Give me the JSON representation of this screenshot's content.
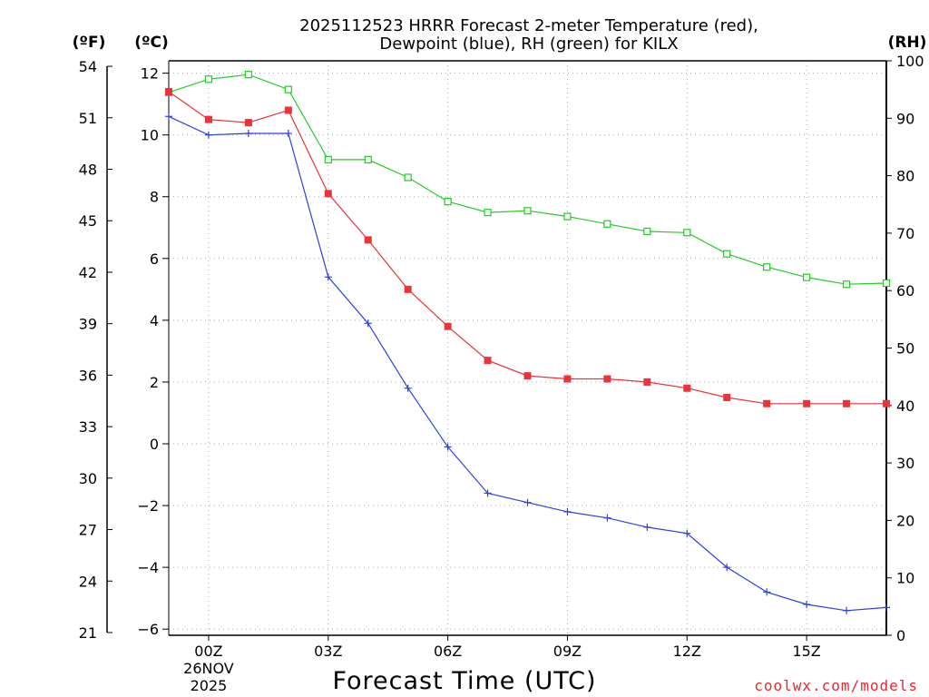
{
  "chart_data": {
    "type": "line",
    "title_line1": "2025112523 HRRR Forecast 2-meter Temperature (red),",
    "title_line2": "Dewpoint (blue), RH (green) for KILX",
    "xlabel": "Forecast Time (UTC)",
    "credit": "coolwx.com/models",
    "units": {
      "fahrenheit": "(ºF)",
      "celsius": "(ºC)",
      "rh": "(RH)"
    },
    "x_hours": [
      -1,
      0,
      1,
      2,
      3,
      4,
      5,
      6,
      7,
      8,
      9,
      10,
      11,
      12,
      13,
      14,
      15,
      16,
      17
    ],
    "xlim": [
      -1,
      17
    ],
    "x_ticks": [
      {
        "hour": 0,
        "label": "00Z",
        "label2": "26NOV",
        "label3": "2025"
      },
      {
        "hour": 3,
        "label": "03Z"
      },
      {
        "hour": 6,
        "label": "06Z"
      },
      {
        "hour": 9,
        "label": "09Z"
      },
      {
        "hour": 12,
        "label": "12Z"
      },
      {
        "hour": 15,
        "label": "15Z"
      }
    ],
    "celsius_axis": {
      "ylim": [
        -6.2,
        12.4
      ],
      "ticks": [
        "12",
        "10",
        "8",
        "6",
        "4",
        "2",
        "0",
        "−2",
        "−4",
        "−6"
      ]
    },
    "fahrenheit_axis": {
      "ticks": [
        "54",
        "51",
        "48",
        "45",
        "42",
        "39",
        "36",
        "33",
        "30",
        "27",
        "24",
        "21"
      ]
    },
    "rh_axis": {
      "ylim": [
        0,
        100
      ],
      "ticks": [
        "100",
        "90",
        "80",
        "70",
        "60",
        "50",
        "40",
        "30",
        "20",
        "10",
        "0"
      ]
    },
    "series": [
      {
        "name": "Temperature",
        "axis": "celsius",
        "color": "#e8343a",
        "marker": "filled-square",
        "values": [
          11.4,
          10.5,
          10.4,
          10.8,
          8.1,
          6.6,
          5.0,
          3.8,
          2.7,
          2.2,
          2.1,
          2.1,
          2.0,
          1.8,
          1.5,
          1.3,
          1.3,
          1.3,
          1.3
        ]
      },
      {
        "name": "Dewpoint",
        "axis": "celsius",
        "color": "#2c3fe6",
        "marker": "plus",
        "values": [
          10.6,
          10.0,
          10.05,
          10.05,
          5.4,
          3.9,
          1.8,
          -0.1,
          -1.6,
          -1.9,
          -2.2,
          -2.4,
          -2.7,
          -2.9,
          -4.0,
          -4.8,
          -5.2,
          -5.4,
          -5.3
        ]
      },
      {
        "name": "RH",
        "axis": "rh",
        "color": "#22cc22",
        "marker": "open-square",
        "values": [
          94.5,
          96.8,
          97.6,
          95.0,
          82.8,
          82.8,
          79.7,
          75.5,
          73.6,
          73.9,
          72.9,
          71.6,
          70.3,
          70.1,
          66.4,
          64.1,
          62.3,
          61.1,
          61.3
        ]
      }
    ]
  }
}
